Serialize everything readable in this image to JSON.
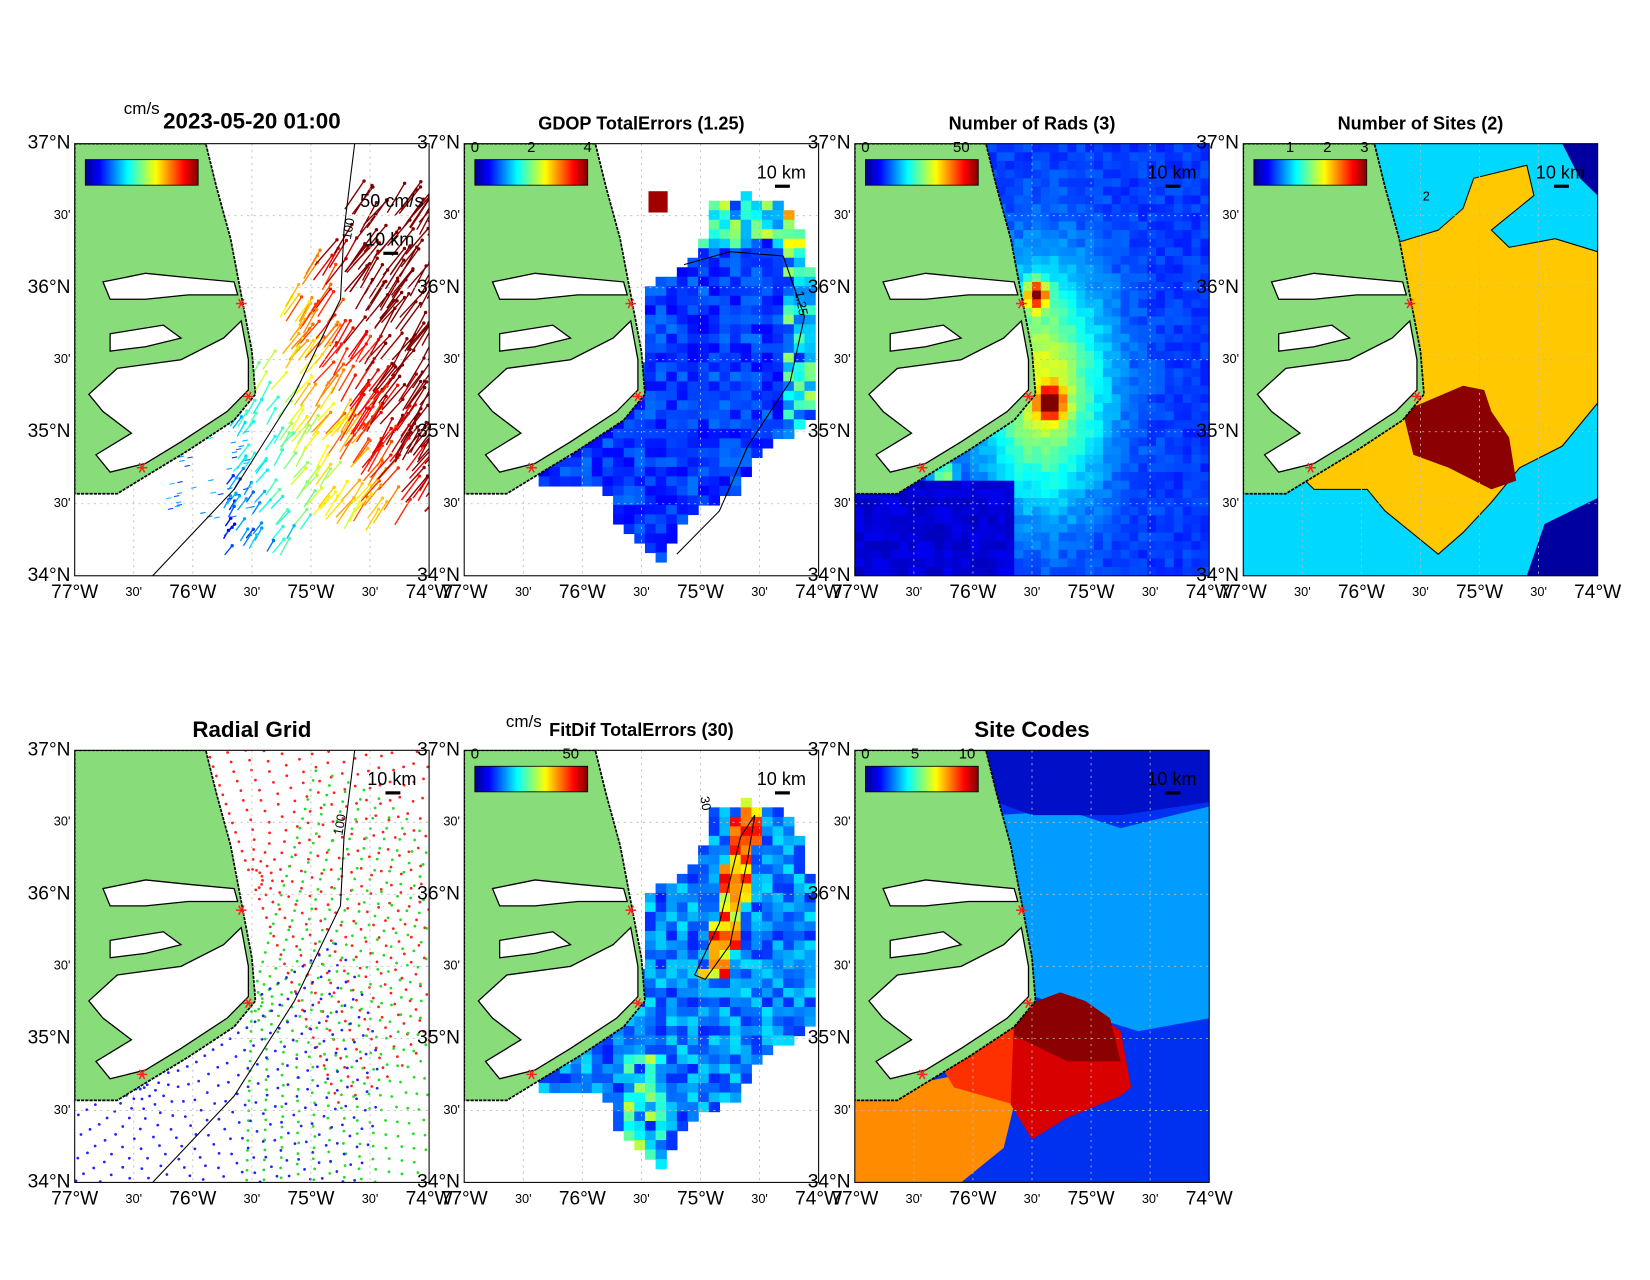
{
  "figure": {
    "lat_labels": [
      "37°N",
      "30'",
      "36°N",
      "30'",
      "35°N",
      "30'",
      "34°N"
    ],
    "lon_labels": [
      "77°W",
      "30'",
      "76°W",
      "30'",
      "75°W",
      "30'",
      "74°W"
    ]
  },
  "panels": [
    {
      "title": "2023-05-20 01:00",
      "unit": "cm/s",
      "scale_labels": [
        "50 cm/s",
        "10 km"
      ],
      "contour_labels": [
        "100"
      ]
    },
    {
      "title": "GDOP TotalErrors (1.25)",
      "colorbar_ticks": [
        "0",
        "2",
        "4"
      ],
      "scale_labels": [
        "10 km"
      ],
      "contour_labels": [
        "1.25"
      ]
    },
    {
      "title": "Number of Rads (3)",
      "colorbar_ticks": [
        "0",
        "50"
      ],
      "scale_labels": [
        "10 km"
      ]
    },
    {
      "title": "Number of Sites (2)",
      "colorbar_ticks": [
        "1",
        "2",
        "3"
      ],
      "scale_labels": [
        "10 km"
      ],
      "contour_labels": [
        "2"
      ]
    },
    {
      "title": "Radial Grid",
      "scale_labels": [
        "10 km"
      ],
      "contour_labels": [
        "100"
      ]
    },
    {
      "title": "FitDif TotalErrors (30)",
      "unit": "cm/s",
      "colorbar_ticks": [
        "0",
        "50"
      ],
      "scale_labels": [
        "10 km"
      ],
      "contour_labels": [
        "30"
      ]
    },
    {
      "title": "Site Codes",
      "colorbar_ticks": [
        "0",
        "5",
        "10"
      ],
      "scale_labels": [
        "10 km"
      ]
    }
  ]
}
